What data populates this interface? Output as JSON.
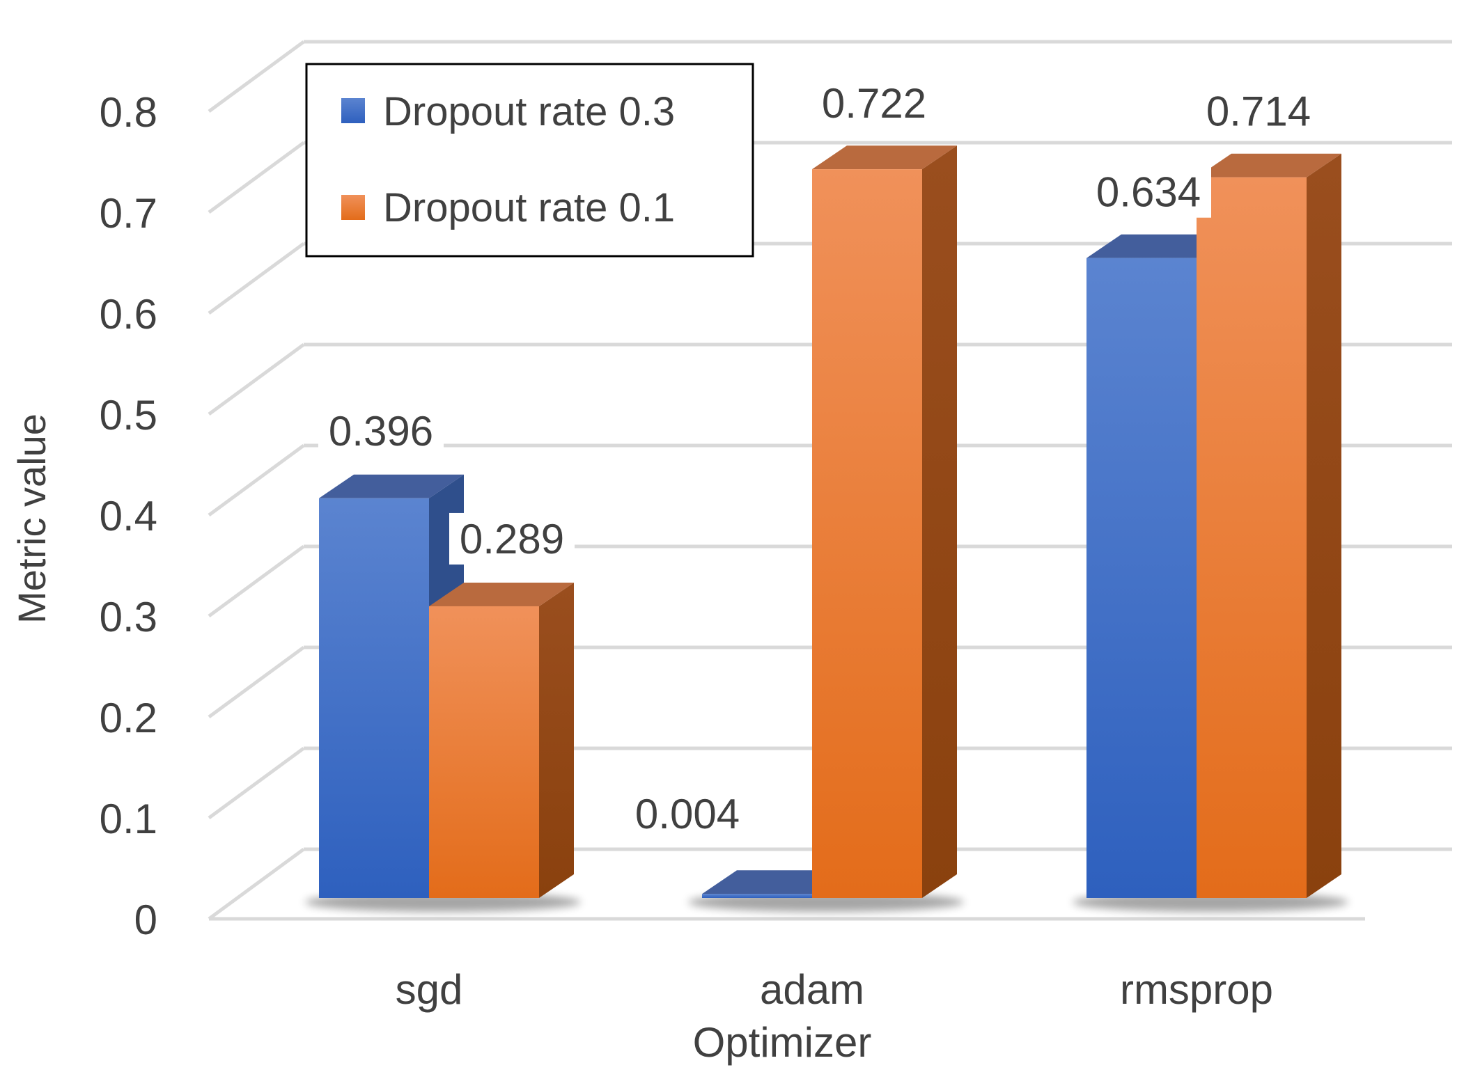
{
  "chart_data": {
    "type": "bar",
    "style": "3d-clustered-column",
    "title": "",
    "xlabel": "Optimizer",
    "ylabel": "Metric value",
    "categories": [
      "sgd",
      "adam",
      "rmsprop"
    ],
    "series": [
      {
        "name": "Dropout rate 0.3",
        "values": [
          0.396,
          0.004,
          0.634
        ],
        "labels": [
          "0.396",
          "0.004",
          "0.634"
        ]
      },
      {
        "name": "Dropout rate 0.1",
        "values": [
          0.289,
          0.722,
          0.714
        ],
        "labels": [
          "0.289",
          "0.722",
          "0.714"
        ]
      }
    ],
    "ylim": [
      0,
      0.8
    ],
    "yticks": [
      0,
      0.1,
      0.2,
      0.3,
      0.4,
      0.5,
      0.6,
      0.7,
      0.8
    ],
    "ytick_labels": [
      "0",
      "0.1",
      "0.2",
      "0.3",
      "0.4",
      "0.5",
      "0.6",
      "0.7",
      "0.8"
    ],
    "grid": true,
    "legend_position": "top-left",
    "colors": {
      "series_0_front_top": "#5B84D0",
      "series_0_front_bottom": "#2E60BE",
      "series_0_side": "#2F4F8C",
      "series_0_top": "#435E9C",
      "series_1_front_top": "#F0915A",
      "series_1_front_bottom": "#E36C1A",
      "series_1_side": "#9A4E1E",
      "series_1_top": "#B96A3E",
      "grid": "#D9D9D9",
      "text": "#404040"
    }
  }
}
